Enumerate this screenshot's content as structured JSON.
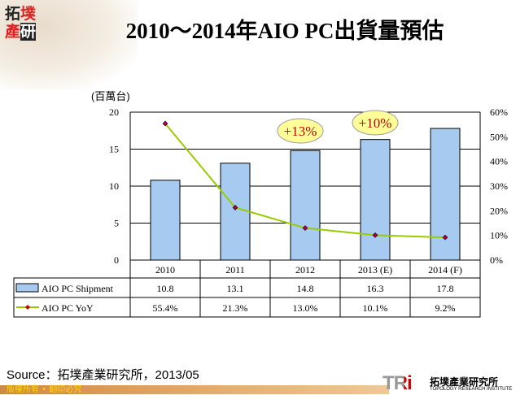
{
  "logo": {
    "chars": [
      "拓",
      "墣",
      "產",
      "研"
    ]
  },
  "title": "2010～2014年AIO PC出貨量預估",
  "unit_label": "(百萬台)",
  "chart_data": {
    "type": "bar+line",
    "categories": [
      "2010",
      "2011",
      "2012",
      "2013 (E)",
      "2014 (F)"
    ],
    "series": [
      {
        "name": "AIO PC Shipment",
        "type": "bar",
        "axis": "left",
        "values": [
          10.8,
          13.1,
          14.8,
          16.3,
          17.8
        ],
        "labels": [
          "10.8",
          "13.1",
          "14.8",
          "16.3",
          "17.8"
        ],
        "color": "#a6caf0"
      },
      {
        "name": "AIO PC YoY",
        "type": "line",
        "axis": "right",
        "values": [
          55.4,
          21.3,
          13.0,
          10.1,
          9.2
        ],
        "labels": [
          "55.4%",
          "21.3%",
          "13.0%",
          "10.1%",
          "9.2%"
        ],
        "color": "#99cc00",
        "marker_color": "#c00000"
      }
    ],
    "y_left": {
      "range": [
        0,
        20
      ],
      "ticks": [
        "0",
        "5",
        "10",
        "15",
        "20"
      ]
    },
    "y_right": {
      "range": [
        0,
        60
      ],
      "ticks": [
        "0%",
        "10%",
        "20%",
        "30%",
        "40%",
        "50%",
        "60%"
      ]
    },
    "grid": true,
    "legend": "data-table",
    "annotations": [
      {
        "text": "+13%",
        "category": "2012"
      },
      {
        "text": "+10%",
        "category": "2013 (E)"
      }
    ]
  },
  "source": "Source：拓墣產業研究所，2013/05",
  "footer": "版權所有 • 翻印必究",
  "brand": {
    "mark": "TRi",
    "cn": "拓墣產業研究所",
    "en": "TOPOLOGY RESEARCH INSTITUTE"
  }
}
